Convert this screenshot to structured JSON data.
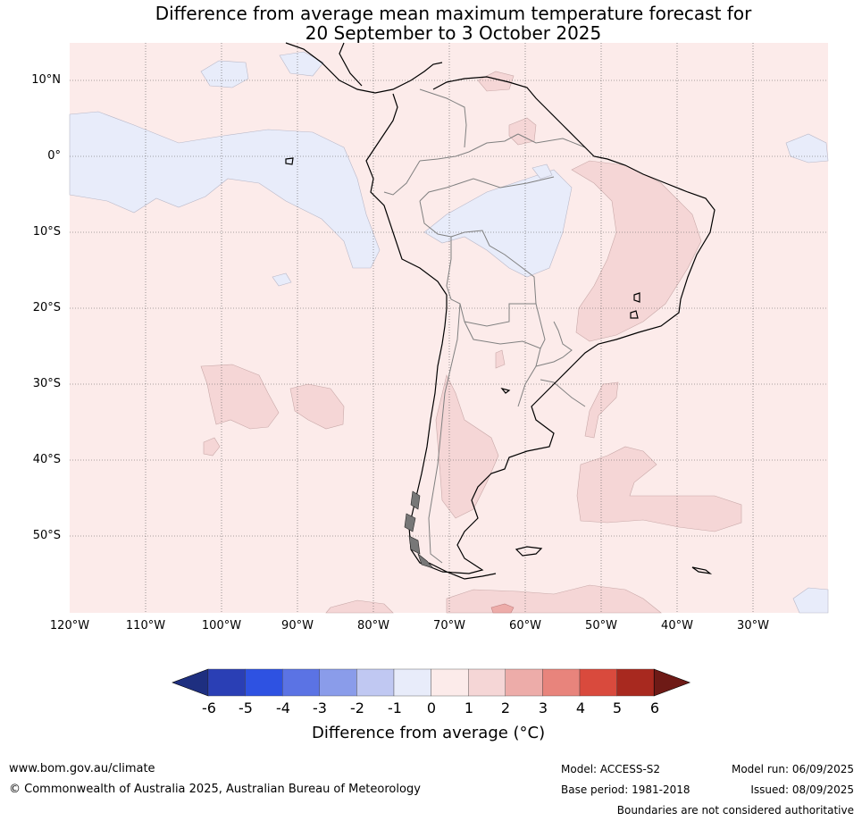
{
  "title": {
    "line1": "Difference from average mean maximum temperature forecast for",
    "line2": "20 September to 3 October 2025"
  },
  "map": {
    "lat_labels": [
      "10°N",
      "0°",
      "10°S",
      "20°S",
      "30°S",
      "40°S",
      "50°S"
    ],
    "lon_labels": [
      "120°W",
      "110°W",
      "100°W",
      "90°W",
      "80°W",
      "70°W",
      "60°W",
      "50°W",
      "40°W",
      "30°W"
    ],
    "colors": {
      "near_zero_warm": "#fcebea",
      "warm_1_2": "#f5d6d6",
      "warm_2_3": "#edaca9",
      "cool_0_1": "#e8ecfa",
      "coast": "#000000",
      "borders": "#808080",
      "gridline": "#555555"
    }
  },
  "colorbar": {
    "ticks": [
      "-6",
      "-5",
      "-4",
      "-3",
      "-2",
      "-1",
      "0",
      "1",
      "2",
      "3",
      "4",
      "5",
      "6"
    ],
    "colors": [
      "#1e2f80",
      "#2a3fb5",
      "#2e52e2",
      "#5b73e4",
      "#8a9cea",
      "#c0c8f2",
      "#e8ecfa",
      "#fcebea",
      "#f5d6d6",
      "#edaca9",
      "#e8847c",
      "#d94a3d",
      "#a8291f",
      "#6e1a16"
    ],
    "label": "Difference from average (°C)"
  },
  "footer": {
    "website": "www.bom.gov.au/climate",
    "copyright": "© Commonwealth of Australia 2025, Australian Bureau of Meteorology",
    "model": "Model: ACCESS-S2",
    "model_run": "Model run: 06/09/2025",
    "base_period": "Base period: 1981-2018",
    "issued": "Issued: 08/09/2025",
    "disclaimer": "Boundaries are not considered authoritative"
  }
}
